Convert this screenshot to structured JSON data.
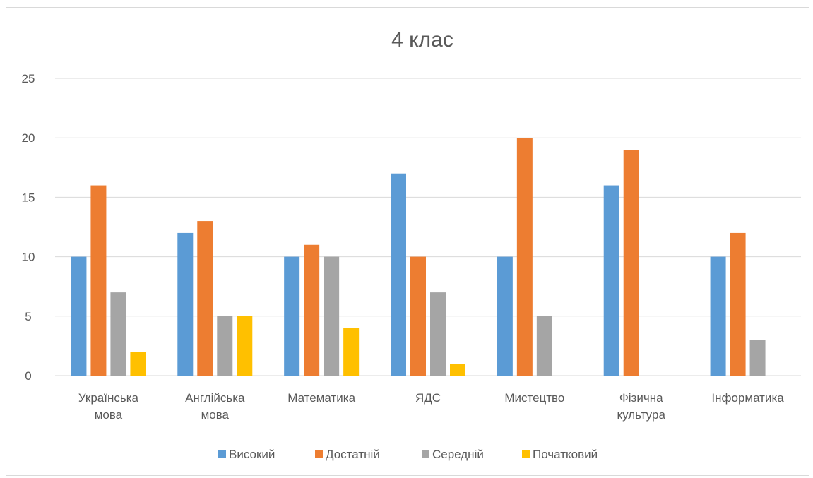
{
  "chart_data": {
    "type": "bar",
    "title": "4 клас",
    "categories": [
      [
        "Українська",
        "мова"
      ],
      [
        "Англійська",
        "мова"
      ],
      [
        "Математика"
      ],
      [
        "ЯДС"
      ],
      [
        "Мистецтво"
      ],
      [
        "Фізична",
        "культура"
      ],
      [
        "Інформатика"
      ]
    ],
    "series": [
      {
        "name": "Високий",
        "color": "#5b9bd5",
        "values": [
          10,
          12,
          10,
          17,
          10,
          16,
          10
        ]
      },
      {
        "name": "Достатній",
        "color": "#ed7d31",
        "values": [
          16,
          13,
          11,
          10,
          20,
          19,
          12
        ]
      },
      {
        "name": "Середній",
        "color": "#a5a5a5",
        "values": [
          7,
          5,
          10,
          7,
          5,
          0,
          3
        ]
      },
      {
        "name": "Початковий",
        "color": "#ffc000",
        "values": [
          2,
          5,
          4,
          1,
          0,
          0,
          0
        ]
      }
    ],
    "ylim": [
      0,
      25
    ],
    "yticks": [
      0,
      5,
      10,
      15,
      20,
      25
    ],
    "grid": true,
    "legend": "bottom"
  }
}
